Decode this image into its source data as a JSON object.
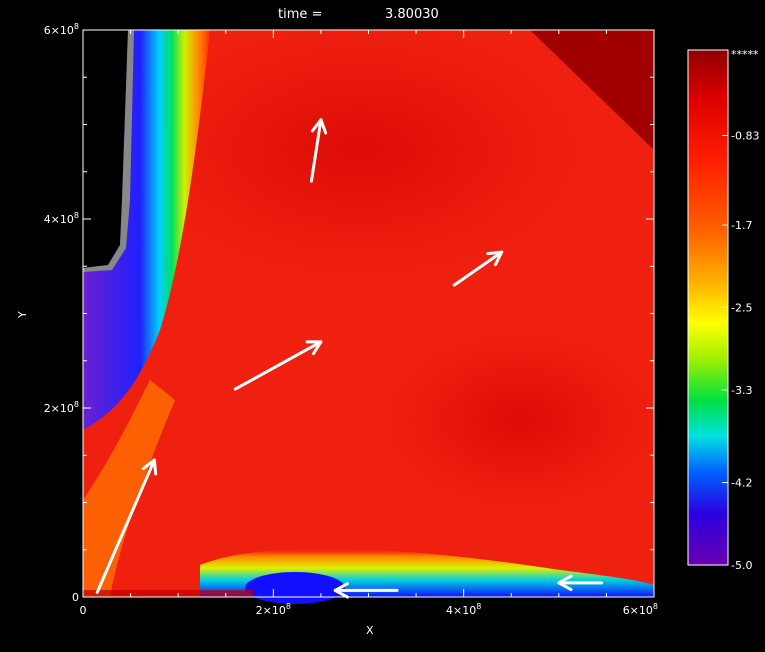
{
  "chart_data": {
    "type": "heatmap",
    "title_label": "time =",
    "title_value": "3.80030",
    "xlabel": "X",
    "ylabel": "Y",
    "xlim": [
      0,
      600000000
    ],
    "ylim": [
      0,
      600000000
    ],
    "x_ticks": [
      {
        "value": 0,
        "base": "0",
        "exp": ""
      },
      {
        "value": 200000000,
        "base": "2×10",
        "exp": "8"
      },
      {
        "value": 400000000,
        "base": "4×10",
        "exp": "8"
      },
      {
        "value": 600000000,
        "base": "6×10",
        "exp": "8"
      }
    ],
    "y_ticks": [
      {
        "value": 0,
        "base": "0",
        "exp": ""
      },
      {
        "value": 200000000,
        "base": "2×10",
        "exp": "8"
      },
      {
        "value": 400000000,
        "base": "4×10",
        "exp": "8"
      },
      {
        "value": 600000000,
        "base": "6×10",
        "exp": "8"
      }
    ],
    "colorbar": {
      "range": [
        -5.0,
        0.0
      ],
      "top_label": "*****",
      "ticks": [
        {
          "value": -0.83,
          "label": "-0.83"
        },
        {
          "value": -1.7,
          "label": "-1.7"
        },
        {
          "value": -2.5,
          "label": "-2.5"
        },
        {
          "value": -3.3,
          "label": "-3.3"
        },
        {
          "value": -4.2,
          "label": "-4.2"
        },
        {
          "value": -5.0,
          "label": "-5.0"
        }
      ]
    },
    "velocity_arrows": [
      {
        "from": [
          15000000,
          5000000
        ],
        "to": [
          75000000,
          145000000
        ]
      },
      {
        "from": [
          240000000,
          440000000
        ],
        "to": [
          250000000,
          505000000
        ]
      },
      {
        "from": [
          160000000,
          220000000
        ],
        "to": [
          250000000,
          270000000
        ]
      },
      {
        "from": [
          390000000,
          330000000
        ],
        "to": [
          440000000,
          365000000
        ]
      },
      {
        "from": [
          330000000,
          7000000
        ],
        "to": [
          265000000,
          7000000
        ]
      },
      {
        "from": [
          545000000,
          15000000
        ],
        "to": [
          500000000,
          15000000
        ]
      }
    ]
  }
}
